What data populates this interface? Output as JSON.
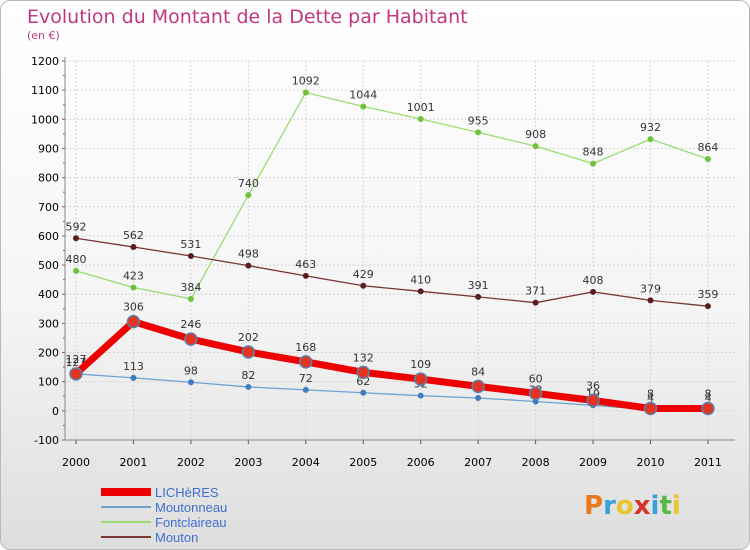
{
  "title": "Evolution du Montant de la Dette par Habitant",
  "subtitle": "(en €)",
  "logo": {
    "text": "Proxiti",
    "colors": [
      "#e87a1e",
      "#3aa0d8",
      "#e8c52a",
      "#d8332b",
      "#3aa0d8",
      "#55b848",
      "#e8c52a"
    ]
  },
  "chart_data": {
    "type": "line",
    "title": "Evolution du Montant de la Dette par Habitant",
    "subtitle": "(en €)",
    "xlabel": "",
    "ylabel": "",
    "ylim": [
      -100,
      1200
    ],
    "yticks": [
      -100,
      0,
      100,
      200,
      300,
      400,
      500,
      600,
      700,
      800,
      900,
      1000,
      1100,
      1200
    ],
    "x": [
      "2000",
      "2001",
      "2002",
      "2003",
      "2004",
      "2005",
      "2006",
      "2007",
      "2008",
      "2009",
      "2010",
      "2011"
    ],
    "grid": true,
    "legend_position": "bottom-left",
    "series": [
      {
        "name": "Fontclaireau",
        "color": "#9bdc73",
        "dot": "#6ec23e",
        "width": 1.3,
        "dotr": 3,
        "values": [
          480,
          423,
          384,
          740,
          1092,
          1044,
          1001,
          955,
          908,
          848,
          932,
          864
        ]
      },
      {
        "name": "Mouton",
        "color": "#7a3535",
        "dot": "#5a1e1e",
        "width": 1.3,
        "dotr": 3,
        "values": [
          592,
          562,
          531,
          498,
          463,
          429,
          410,
          391,
          371,
          408,
          379,
          359
        ]
      },
      {
        "name": "Moutonneau",
        "color": "#6fa2d0",
        "dot": "#3d7ec0",
        "width": 1.3,
        "dotr": 3,
        "values": [
          127,
          113,
          98,
          82,
          72,
          62,
          52,
          44,
          32,
          19,
          4,
          4
        ]
      },
      {
        "name": "LICHèRES",
        "color": "#ee0000",
        "dot": "#e3341f",
        "width": 7,
        "dotr": 6,
        "values": [
          127,
          306,
          246,
          202,
          168,
          132,
          109,
          84,
          60,
          36,
          8,
          8
        ]
      }
    ],
    "legend_order": [
      "LICHèRES",
      "Moutonneau",
      "Fontclaireau",
      "Mouton"
    ]
  }
}
